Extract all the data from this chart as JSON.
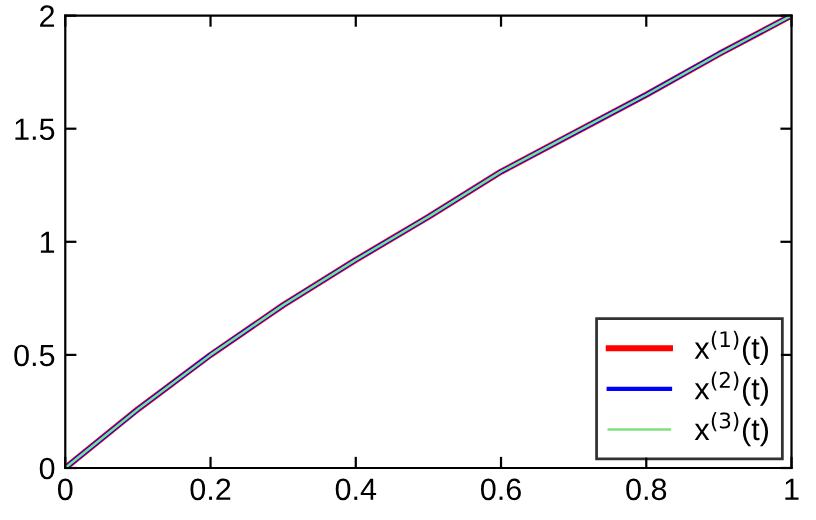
{
  "chart_data": {
    "type": "line",
    "x": [
      0,
      0.1,
      0.2,
      0.3,
      0.4,
      0.5,
      0.6,
      0.7,
      0.8,
      0.9,
      1
    ],
    "series": [
      {
        "name": "x$^{(1)}$(t)",
        "color": "#ff0000",
        "values": [
          0,
          0.26,
          0.5,
          0.72,
          0.92,
          1.11,
          1.31,
          1.48,
          1.65,
          1.83,
          2.0
        ]
      },
      {
        "name": "x$^{(2)}$(t)",
        "color": "#0000ff",
        "values": [
          0,
          0.26,
          0.5,
          0.72,
          0.92,
          1.11,
          1.31,
          1.48,
          1.65,
          1.83,
          2.0
        ]
      },
      {
        "name": "x$^{(3)}$(t)",
        "color": "#80e080",
        "values": [
          0,
          0.26,
          0.5,
          0.72,
          0.92,
          1.11,
          1.31,
          1.48,
          1.65,
          1.83,
          2.0
        ]
      }
    ],
    "xlim": [
      0,
      1
    ],
    "xticks": [
      0,
      0.2,
      0.4,
      0.6,
      0.8,
      1
    ],
    "ylim": [
      0,
      2
    ],
    "yticks": [
      0,
      0.5,
      1,
      1.5,
      2
    ],
    "legend": "bottom right",
    "grid": false,
    "marker": "none",
    "line_style": "solid"
  }
}
